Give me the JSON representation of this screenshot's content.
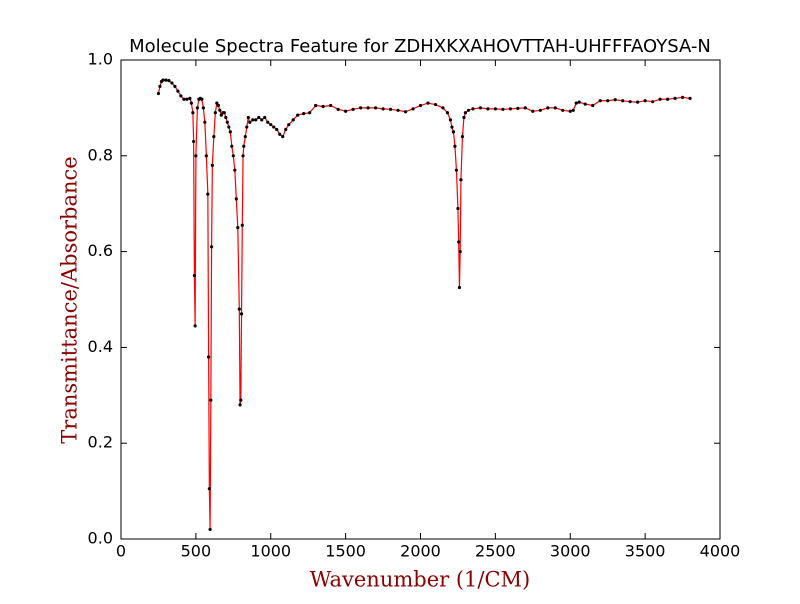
{
  "chart_data": {
    "type": "line",
    "title": "Molecule Spectra Feature for ZDHXKXAHOVTTAH-UHFFFAOYSA-N",
    "x_label": "Wavenumber (1/CM)",
    "y_label": "Transmittance/Absorbance",
    "axis_label_color": "#8b0000",
    "line_color": "#ff0000",
    "marker_color": "#000000",
    "xlim": [
      0,
      4000
    ],
    "xticks": [
      0,
      500,
      1000,
      1500,
      2000,
      2500,
      3000,
      3500,
      4000
    ],
    "ylim": [
      0,
      1
    ],
    "yticks": [
      {
        "value": 0,
        "label": "0.0"
      },
      0.2,
      0.4,
      0.6,
      0.8,
      {
        "value": 1,
        "label": "1.0"
      }
    ],
    "x": [
      250,
      260,
      270,
      280,
      300,
      320,
      340,
      360,
      380,
      400,
      420,
      440,
      460,
      470,
      480,
      485,
      490,
      495,
      500,
      510,
      520,
      530,
      540,
      550,
      560,
      570,
      580,
      585,
      590,
      595,
      600,
      605,
      610,
      620,
      630,
      640,
      650,
      660,
      670,
      680,
      690,
      700,
      710,
      720,
      730,
      740,
      750,
      760,
      770,
      780,
      790,
      795,
      800,
      805,
      810,
      815,
      820,
      830,
      840,
      850,
      860,
      880,
      900,
      920,
      940,
      960,
      980,
      1000,
      1020,
      1040,
      1060,
      1080,
      1100,
      1120,
      1150,
      1180,
      1220,
      1260,
      1300,
      1350,
      1400,
      1450,
      1500,
      1550,
      1600,
      1650,
      1700,
      1750,
      1800,
      1850,
      1900,
      1950,
      2000,
      2050,
      2100,
      2150,
      2180,
      2200,
      2210,
      2220,
      2230,
      2240,
      2250,
      2255,
      2260,
      2265,
      2270,
      2280,
      2290,
      2300,
      2320,
      2350,
      2400,
      2450,
      2500,
      2550,
      2600,
      2650,
      2700,
      2750,
      2800,
      2850,
      2900,
      2950,
      3000,
      3020,
      3040,
      3060,
      3100,
      3150,
      3200,
      3250,
      3300,
      3350,
      3400,
      3450,
      3500,
      3550,
      3600,
      3650,
      3700,
      3750,
      3800
    ],
    "values": [
      0.93,
      0.945,
      0.955,
      0.958,
      0.958,
      0.957,
      0.952,
      0.945,
      0.935,
      0.925,
      0.918,
      0.918,
      0.92,
      0.91,
      0.89,
      0.83,
      0.55,
      0.445,
      0.8,
      0.9,
      0.918,
      0.92,
      0.918,
      0.9,
      0.87,
      0.8,
      0.72,
      0.38,
      0.105,
      0.02,
      0.29,
      0.61,
      0.78,
      0.84,
      0.89,
      0.91,
      0.905,
      0.895,
      0.885,
      0.89,
      0.89,
      0.88,
      0.87,
      0.86,
      0.85,
      0.82,
      0.8,
      0.77,
      0.71,
      0.65,
      0.48,
      0.28,
      0.29,
      0.47,
      0.655,
      0.8,
      0.82,
      0.84,
      0.86,
      0.88,
      0.87,
      0.875,
      0.875,
      0.88,
      0.875,
      0.88,
      0.87,
      0.865,
      0.86,
      0.855,
      0.845,
      0.84,
      0.855,
      0.865,
      0.875,
      0.885,
      0.888,
      0.89,
      0.905,
      0.903,
      0.905,
      0.897,
      0.893,
      0.897,
      0.9,
      0.9,
      0.9,
      0.898,
      0.897,
      0.895,
      0.892,
      0.898,
      0.905,
      0.91,
      0.907,
      0.9,
      0.89,
      0.875,
      0.86,
      0.85,
      0.82,
      0.77,
      0.69,
      0.62,
      0.525,
      0.6,
      0.75,
      0.84,
      0.88,
      0.89,
      0.895,
      0.898,
      0.9,
      0.898,
      0.898,
      0.897,
      0.898,
      0.899,
      0.9,
      0.893,
      0.895,
      0.9,
      0.9,
      0.895,
      0.893,
      0.895,
      0.91,
      0.912,
      0.908,
      0.905,
      0.915,
      0.915,
      0.917,
      0.915,
      0.913,
      0.912,
      0.915,
      0.913,
      0.918,
      0.918,
      0.92,
      0.922,
      0.92
    ]
  }
}
